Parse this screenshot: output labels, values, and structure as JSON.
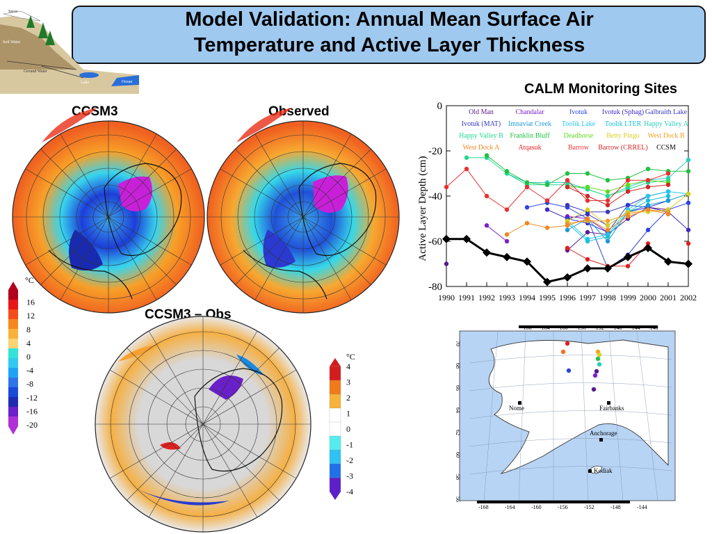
{
  "slide": {
    "title_line1": "Model Validation: Annual Mean Surface Air",
    "title_line2": "Temperature and Active Layer Thickness"
  },
  "diagram_labels": [
    "Snow",
    "Soil Water",
    "Ground Water",
    "Lake",
    "Ocean"
  ],
  "maps": {
    "ccsm3_label": "CCSM3",
    "observed_label": "Observed",
    "difference_label": "CCSM3 – Obs",
    "temp_colorbar": {
      "unit": "°C",
      "ticks": [
        "16",
        "12",
        "8",
        "4",
        "0",
        "-4",
        "-8",
        "-12",
        "-16",
        "-20"
      ],
      "colors": [
        "#b2001f",
        "#e8161a",
        "#f44b1a",
        "#f6871f",
        "#f7b23a",
        "#f9d374",
        "#35e2d8",
        "#30c9f0",
        "#1ea3f5",
        "#2f74e8",
        "#1b49d8",
        "#1f2bb0",
        "#6b21c9",
        "#b030d8"
      ]
    },
    "diff_colorbar": {
      "unit": "°C",
      "ticks": [
        "4",
        "3",
        "2",
        "1",
        "0",
        "-1",
        "-2",
        "-3",
        "-4"
      ],
      "colors": [
        "#d31c1c",
        "#f07a1a",
        "#f7b23a",
        "#ffffff",
        "#ffffff",
        "#54ecec",
        "#2fc2f2",
        "#2070e8",
        "#5d20c8"
      ]
    }
  },
  "chart_data": [
    {
      "type": "line",
      "title": "CALM Monitoring Sites",
      "ylabel": "Active Layer Depth (cm)",
      "xlabel": "",
      "x": [
        1990,
        1991,
        1992,
        1993,
        1994,
        1995,
        1996,
        1997,
        1998,
        1999,
        2000,
        2001,
        2002
      ],
      "xlim": [
        1990,
        2002
      ],
      "ylim": [
        -80,
        0
      ],
      "yticks": [
        0,
        -20,
        -40,
        -60,
        -80
      ],
      "legend_placement": "top-inside",
      "series": [
        {
          "name": "Old Man",
          "color": "#5a1a8c",
          "values": [
            -70,
            null,
            null,
            null,
            null,
            null,
            -64,
            -56,
            -57,
            -50,
            -45,
            -46,
            null
          ]
        },
        {
          "name": "Chandalar",
          "color": "#7a22c8",
          "values": [
            null,
            null,
            -53,
            -60,
            null,
            null,
            -49,
            -50,
            -56,
            null,
            null,
            null,
            null
          ]
        },
        {
          "name": "Ivotuk",
          "color": "#2d44e0",
          "values": [
            null,
            null,
            null,
            null,
            -45,
            -43,
            -45,
            -50,
            -72,
            -66,
            -55,
            -46,
            -43
          ]
        },
        {
          "name": "Ivotuk (Sphag)",
          "color": "#3d2ac0",
          "values": [
            null,
            null,
            null,
            null,
            null,
            -46,
            -50,
            -48,
            -53,
            -47,
            -45,
            -47,
            -55
          ]
        },
        {
          "name": "Galbraith Lake",
          "color": "#3a3ab8",
          "values": [
            null,
            null,
            null,
            null,
            null,
            null,
            -44,
            -47,
            -47,
            -44,
            -40,
            -38,
            null
          ]
        },
        {
          "name": "Ivotuk (MAT)",
          "color": "#2f38c8",
          "values": [
            null,
            null,
            null,
            null,
            null,
            null,
            -50,
            -52,
            -56,
            -44,
            -45,
            -42,
            null
          ]
        },
        {
          "name": "Imnaviat Creek",
          "color": "#1a9ad8",
          "values": [
            null,
            null,
            null,
            null,
            null,
            null,
            -55,
            -50,
            -60,
            -47,
            -44,
            -42,
            -39
          ]
        },
        {
          "name": "Toolik Lake",
          "color": "#20c8e8",
          "values": [
            null,
            null,
            null,
            null,
            null,
            null,
            -51,
            -59,
            -57,
            -46,
            -40,
            -38,
            -39
          ]
        },
        {
          "name": "Toolik LTER",
          "color": "#18c0d8",
          "values": [
            null,
            null,
            null,
            null,
            null,
            null,
            -52,
            -60,
            -58,
            -47,
            -42,
            -40,
            null
          ]
        },
        {
          "name": "Happy Valley A",
          "color": "#28d0b8",
          "values": [
            null,
            null,
            null,
            -30,
            -34,
            -34,
            -34,
            -37,
            -40,
            -36,
            -33,
            -32,
            -24
          ]
        },
        {
          "name": "Happy Valley B",
          "color": "#20d890",
          "values": [
            null,
            -23,
            -23,
            -30,
            -35,
            -35,
            -35,
            -37,
            -40,
            -37,
            -34,
            -33,
            null
          ]
        },
        {
          "name": "Franklin Bluff",
          "color": "#20c040",
          "values": [
            null,
            null,
            -22,
            -29,
            -34,
            -35,
            -30,
            -30,
            -33,
            -32,
            -28,
            -29,
            -29
          ]
        },
        {
          "name": "Deadhorse",
          "color": "#60d820",
          "values": [
            null,
            null,
            null,
            null,
            null,
            null,
            -36,
            -36,
            -38,
            -35,
            -33,
            -34,
            null
          ]
        },
        {
          "name": "Betty Pingo",
          "color": "#d8d020",
          "values": [
            null,
            null,
            null,
            null,
            null,
            null,
            -51,
            -46,
            -53,
            -47,
            -47,
            -46,
            -39
          ]
        },
        {
          "name": "West Dock B",
          "color": "#f0a020",
          "values": [
            null,
            null,
            null,
            null,
            null,
            null,
            -52,
            -51,
            -51,
            -48,
            -46,
            -47,
            null
          ]
        },
        {
          "name": "West Dock A",
          "color": "#f08820",
          "values": [
            null,
            null,
            null,
            -57,
            -52,
            -54,
            -53,
            -50,
            -55,
            -49,
            -46,
            -48,
            null
          ]
        },
        {
          "name": "Atqasuk",
          "color": "#e02020",
          "values": [
            null,
            null,
            null,
            null,
            null,
            null,
            -63,
            -68,
            -71,
            -71,
            -61,
            null,
            -61
          ]
        },
        {
          "name": "Barrow",
          "color": "#e83030",
          "values": [
            -36,
            -28,
            -40,
            -46,
            -36,
            -42,
            -33,
            -42,
            -42,
            -33,
            -33,
            -30,
            null
          ]
        },
        {
          "name": "Barrow (CRREL)",
          "color": "#d02828",
          "values": [
            null,
            null,
            null,
            null,
            null,
            null,
            -36,
            -40,
            -44,
            -38,
            -36,
            -35,
            null
          ]
        },
        {
          "name": "CCSM",
          "color": "#000000",
          "values": [
            -59,
            -59,
            -65,
            -67,
            -69,
            -78,
            -76,
            -72,
            -72,
            -67,
            -63,
            -69,
            -70
          ]
        }
      ]
    }
  ],
  "alaska_map": {
    "top_ticks": [
      "-168",
      "-164",
      "-160",
      "-156",
      "-152",
      "-148",
      "-144",
      "-140"
    ],
    "bottom_ticks": [
      "-168",
      "-164",
      "-160",
      "-156",
      "-152",
      "-148",
      "-144"
    ],
    "lat_ticks": [
      "70",
      "68",
      "66",
      "64",
      "62",
      "60",
      "58",
      "56"
    ],
    "cities": [
      "Nome",
      "Fairbanks",
      "Anchorage",
      "Kodiak"
    ],
    "site_colors": [
      "#e02020",
      "#f07020",
      "#f0a020",
      "#d8d020",
      "#20c040",
      "#28d0b8",
      "#2d44e0",
      "#5a1a8c",
      "#7a22c8",
      "#5a1a8c"
    ]
  }
}
